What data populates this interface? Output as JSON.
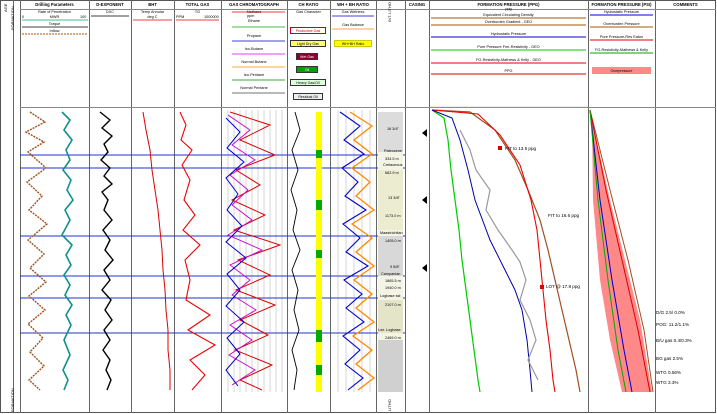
{
  "left_axis": {
    "top_label": "AGE",
    "formation_label": "FORMATION",
    "bottom_label": "FORMATION"
  },
  "columns": {
    "drilling": {
      "title": "Drilling Parameters",
      "sub": "Rate of Penetration",
      "mwr": "MWR",
      "torque": "Torque",
      "inflow": "Inflow"
    },
    "dexp": {
      "title": "D-EXPONENT",
      "sub": "DXC"
    },
    "bht": {
      "title": "BHT",
      "sub": "Temp Annular",
      "unit": "deg C"
    },
    "totalgas": {
      "title": "TOTAL GAS",
      "sub": "TG",
      "unit": "PPM"
    },
    "gaschrom": {
      "title": "GAS CHROMATOGRAPH",
      "items": [
        "Methane",
        "Ethane",
        "Propane",
        "Iso-Butane",
        "Normal Butane",
        "Iso-Pentane",
        "Normal Pentane"
      ],
      "unit": "ppm"
    },
    "chratio": {
      "title": "CH RATIO",
      "sub": "Gas Character",
      "boxes": [
        "Productive Gas",
        "Light Dry Gas",
        "Wet Gas",
        "Oil",
        "Heavy Gas/Oil",
        "Residual Oil"
      ]
    },
    "wh": {
      "title": "WH + BH RATIO",
      "sub1": "Gas Wetness",
      "sub2": "Gas Balance",
      "tag": "WH+BH Ratio"
    },
    "lith": {
      "title": "INT. LITHO",
      "bottom": "LITHO"
    },
    "casing": {
      "title": "CASING"
    },
    "formation_pressure": {
      "title": "FORMATION PRESSURE (PPG)",
      "legend": [
        "Equivalent Circulating Density",
        "Overburden Gradient - GEO",
        "Hydrostatic Pressure",
        "Pore Pressure Fmr-Resistivity - GEO",
        "FG-Resistivity-Mathews & Kelly - GEO",
        "PPG"
      ],
      "unit": "ppg",
      "annotations": [
        "FIT to 13.5 ppg",
        "FIT to 16.6 ppg",
        "LOT @ 17.8 ppg"
      ]
    },
    "formation_pressure_psi": {
      "title": "FORMATION PRESSURE (PSI)",
      "legend": [
        "Hydrostatic Pressure",
        "Overburden Pressure",
        "Pore Pressure-Res Eaton",
        "FG-Resistivity-Mathews & Kelly",
        "Overpressure"
      ],
      "unit": "psi"
    },
    "comments": {
      "title": "COMMENTS",
      "notes": [
        "D/G 2.5/ 0.0%",
        "POG: 11.2/1.1%",
        "B/U gas 0.4/0.3%",
        "BG gas 2.5%",
        "WTG 0.56%",
        "WTG 3.3%"
      ]
    }
  },
  "depth_markers": [
    "16 3/4\"",
    "Paleocene",
    "334.5 m",
    "Cretaceous",
    "662.9 m",
    "13 3/8\"",
    "1173.0 m",
    "Maastrichtian",
    "1405.0 m",
    "9 5/8\"",
    "Campanian",
    "1865.5 m",
    "1940.0 m",
    "Logbase sst",
    "2107.0 m",
    "Lwr. Logbase",
    "2469.0 m"
  ],
  "scale": {
    "lo": "0",
    "hi": "100",
    "hi2": "1000000",
    "hi3": "10000",
    "p20": "20"
  }
}
